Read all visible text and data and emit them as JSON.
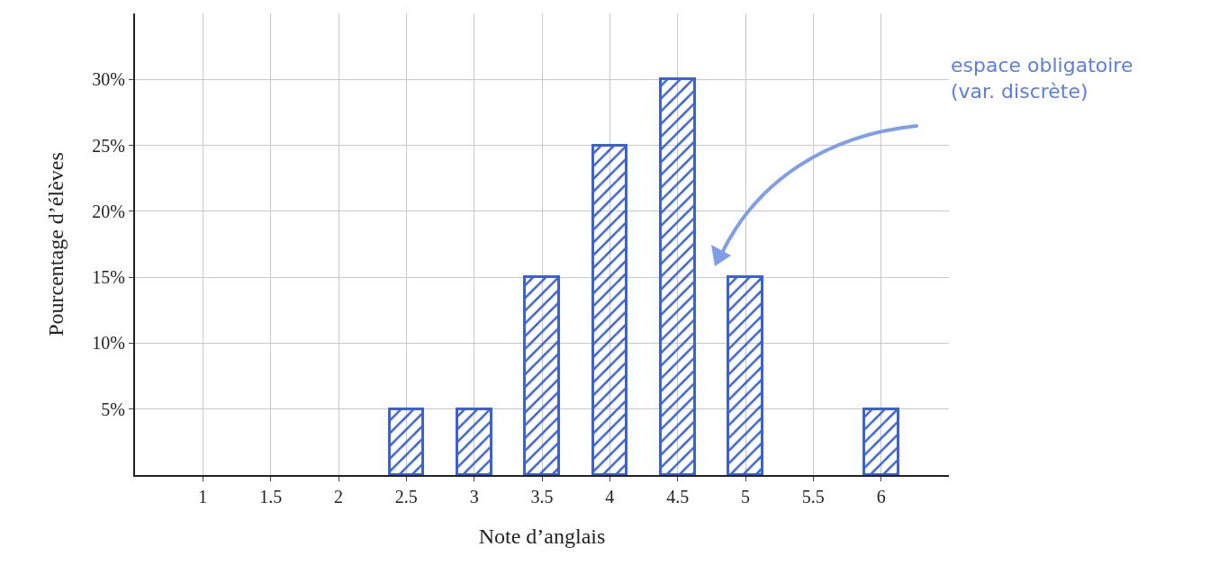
{
  "chart_data": {
    "type": "bar",
    "xlabel": "Note d’anglais",
    "ylabel": "Pourcentage d’élèves",
    "x": [
      2.5,
      3,
      3.5,
      4,
      4.5,
      5,
      6
    ],
    "values": [
      5,
      5,
      15,
      25,
      30,
      15,
      5
    ],
    "color": "#3a62d0",
    "xlim": [
      0.5,
      6.5
    ],
    "xticks": [
      1,
      1.5,
      2,
      2.5,
      3,
      3.5,
      4,
      4.5,
      5,
      5.5,
      6
    ],
    "ylim": [
      0,
      35
    ],
    "yticks": [
      {
        "value": 5,
        "label": "5%"
      },
      {
        "value": 10,
        "label": "10%"
      },
      {
        "value": 15,
        "label": "15%"
      },
      {
        "value": 20,
        "label": "20%"
      },
      {
        "value": 25,
        "label": "25%"
      },
      {
        "value": 30,
        "label": "30%"
      }
    ],
    "grid": true,
    "legend": false,
    "annotations": [
      "espace obligatoire\n(var. discrète)"
    ]
  }
}
